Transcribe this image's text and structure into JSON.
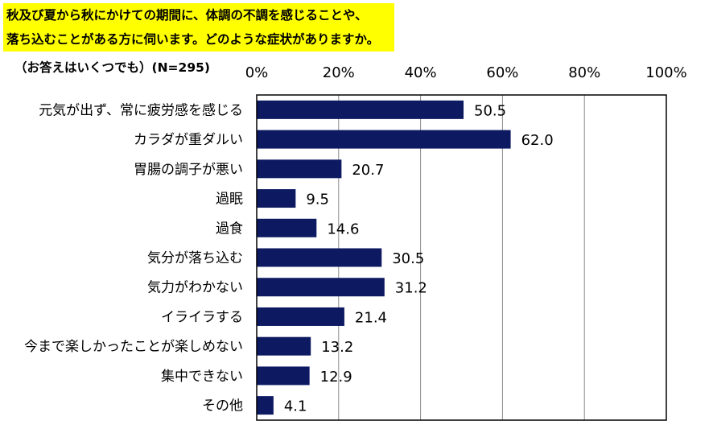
{
  "question": {
    "line1": "秋及び夏から秋にかけての期間に、体調の不調を感じることや、",
    "line2": "落ち込むことがある方に伺います。どのような症状がありますか。"
  },
  "note": "（お答えはいくつでも）(N=295)",
  "chart_data": {
    "type": "bar",
    "orientation": "horizontal",
    "categories": [
      "元気が出ず、常に疲労感を感じる",
      "カラダが重ダルい",
      "胃腸の調子が悪い",
      "過眠",
      "過食",
      "気分が落ち込む",
      "気力がわかない",
      "イライラする",
      "今まで楽しかったことが楽しめない",
      "集中できない",
      "その他"
    ],
    "values": [
      50.5,
      62.0,
      20.7,
      9.5,
      14.6,
      30.5,
      31.2,
      21.4,
      13.2,
      12.9,
      4.1
    ],
    "value_labels": [
      "50.5",
      "62.0",
      "20.7",
      "9.5",
      "14.6",
      "30.5",
      "31.2",
      "21.4",
      "13.2",
      "12.9",
      "4.1"
    ],
    "xticks": [
      "0%",
      "20%",
      "40%",
      "60%",
      "80%",
      "100%"
    ],
    "xlim": [
      0,
      100
    ],
    "grid": true,
    "bar_color": "#0d1a62"
  }
}
